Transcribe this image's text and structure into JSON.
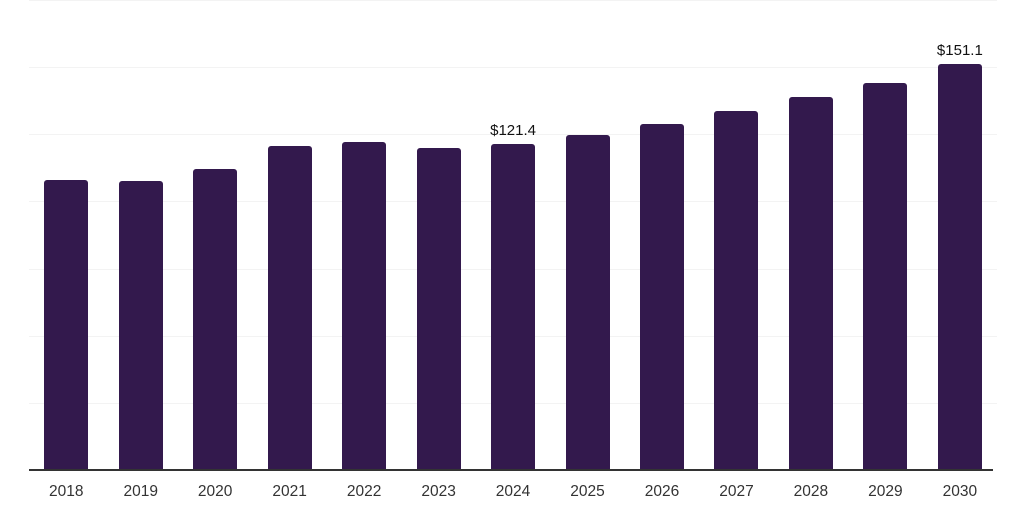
{
  "chart_data": {
    "type": "bar",
    "title": "",
    "xlabel": "",
    "ylabel": "",
    "categories": [
      "2018",
      "2019",
      "2020",
      "2021",
      "2022",
      "2023",
      "2024",
      "2025",
      "2026",
      "2027",
      "2028",
      "2029",
      "2030"
    ],
    "values": [
      108.0,
      107.7,
      112.1,
      120.5,
      122.0,
      119.8,
      121.4,
      124.8,
      129.0,
      133.5,
      138.8,
      144.0,
      151.1
    ],
    "data_labels": [
      {
        "category": "2024",
        "text": "$121.4"
      },
      {
        "category": "2030",
        "text": "$151.1"
      }
    ],
    "ylim": [
      0,
      175
    ],
    "gridline_step": 25,
    "grid": true,
    "legend": false,
    "colors": {
      "bar": "#33194d",
      "gridline": "#f3f3f3",
      "axis_line": "#333333",
      "tick_label": "#333333",
      "data_label": "#111111",
      "background": "#ffffff"
    }
  }
}
